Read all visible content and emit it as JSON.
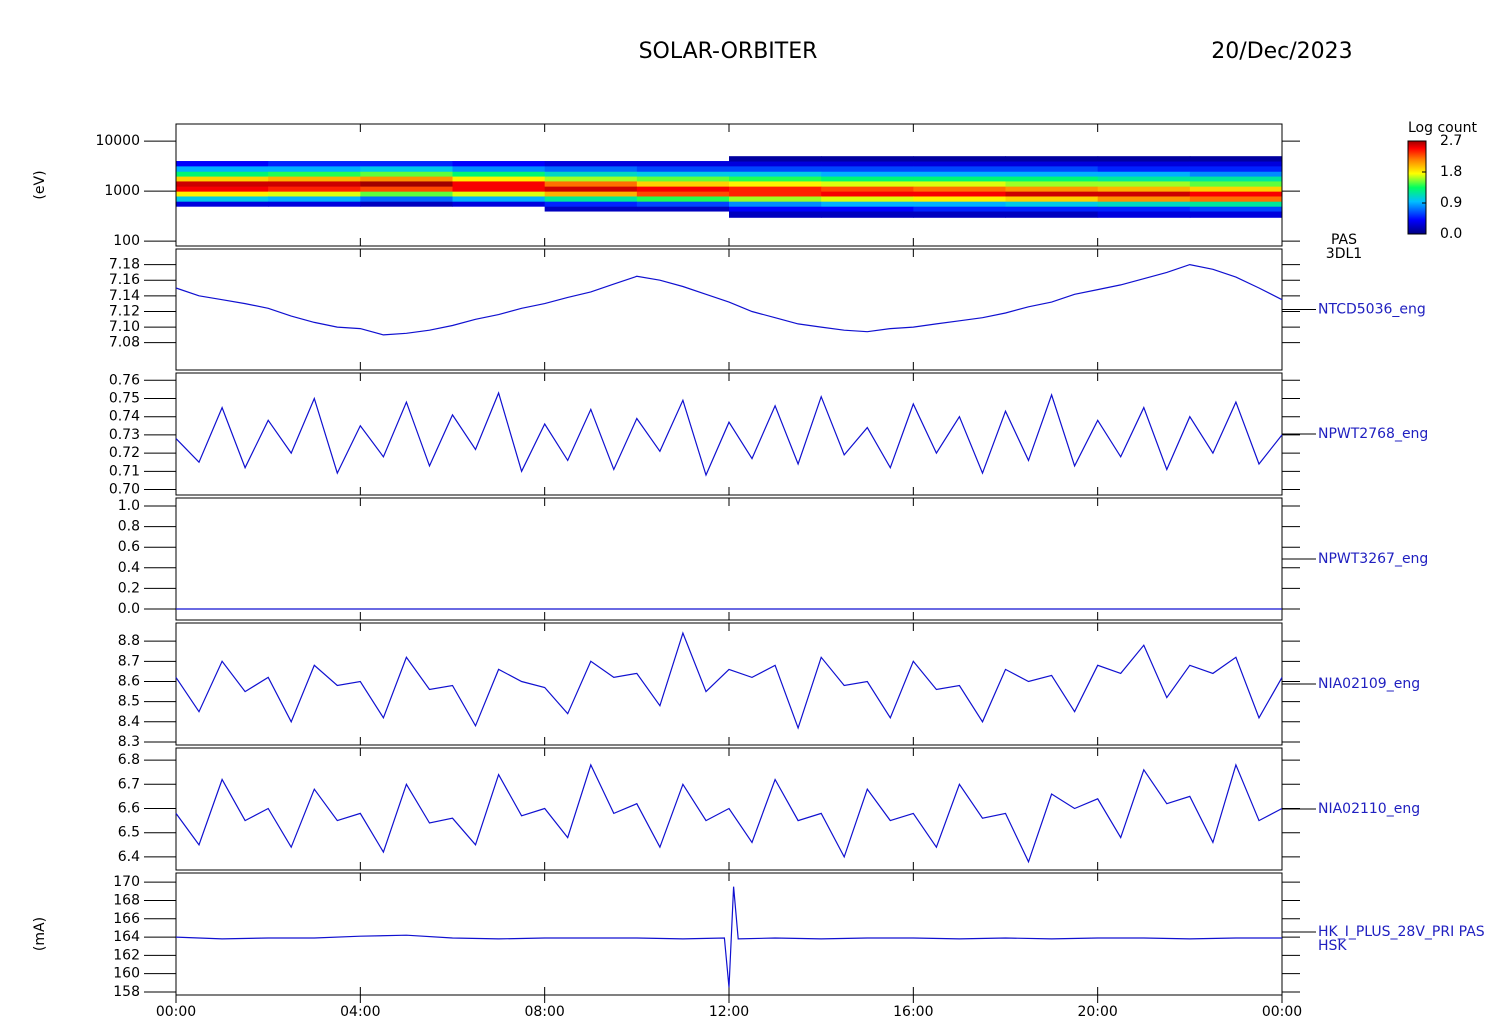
{
  "header": {
    "title": "SOLAR-ORBITER",
    "date": "20/Dec/2023"
  },
  "chart_data": [
    {
      "type": "heatmap",
      "log_y": true,
      "ylabel": "(eV)",
      "right_labels": [
        "PAS",
        "3DL1"
      ],
      "xlim": [
        0,
        24
      ],
      "ylim": [
        80,
        22000
      ],
      "yticks": [
        100,
        1000,
        10000
      ],
      "x_bins": [
        0,
        2,
        4,
        6,
        8,
        10,
        12,
        14,
        16,
        18,
        20,
        22,
        24
      ],
      "y_bins": [
        300,
        400,
        500,
        630,
        800,
        1000,
        1260,
        1600,
        2000,
        2500,
        3200,
        4000,
        5000
      ],
      "values": [
        [
          null,
          null,
          0.3,
          1.0,
          1.8,
          2.5,
          2.6,
          1.9,
          1.3,
          0.9,
          0.4,
          null
        ],
        [
          null,
          null,
          0.3,
          0.9,
          1.7,
          2.4,
          2.6,
          2.0,
          1.4,
          0.9,
          0.5,
          null
        ],
        [
          null,
          null,
          0.2,
          0.7,
          1.5,
          2.3,
          2.7,
          2.1,
          1.5,
          1.0,
          0.5,
          null
        ],
        [
          null,
          null,
          0.3,
          0.9,
          1.7,
          2.5,
          2.5,
          1.8,
          1.3,
          0.8,
          0.4,
          null
        ],
        [
          null,
          0.2,
          0.5,
          1.2,
          2.0,
          2.6,
          2.2,
          1.6,
          1.1,
          0.7,
          0.3,
          null
        ],
        [
          null,
          0.2,
          0.6,
          1.4,
          2.3,
          2.5,
          1.9,
          1.5,
          1.0,
          0.6,
          0.3,
          null
        ],
        [
          0.2,
          0.4,
          0.8,
          1.6,
          2.4,
          2.4,
          1.8,
          1.4,
          1.0,
          0.6,
          0.3,
          0.1
        ],
        [
          0.2,
          0.4,
          0.9,
          1.7,
          2.5,
          2.3,
          1.7,
          1.3,
          0.9,
          0.6,
          0.3,
          0.1
        ],
        [
          0.2,
          0.5,
          0.9,
          1.8,
          2.5,
          2.2,
          1.7,
          1.3,
          0.9,
          0.6,
          0.3,
          0.1
        ],
        [
          0.2,
          0.5,
          1.0,
          1.9,
          2.6,
          2.1,
          1.6,
          1.3,
          0.9,
          0.6,
          0.3,
          0.1
        ],
        [
          0.3,
          0.5,
          1.1,
          2.1,
          2.6,
          2.0,
          1.6,
          1.2,
          0.9,
          0.5,
          0.3,
          0.1
        ],
        [
          0.3,
          0.6,
          1.2,
          2.2,
          2.5,
          1.9,
          1.5,
          1.2,
          0.8,
          0.5,
          0.3,
          0.1
        ]
      ],
      "colorbar": {
        "label": "Log count",
        "zlim": [
          0,
          2.7
        ],
        "ticks": [
          {
            "value": 0,
            "label": "0.0"
          },
          0.9,
          1.8,
          2.7
        ]
      }
    },
    {
      "type": "line",
      "xlim": [
        0,
        24
      ],
      "ylim": [
        7.045,
        7.2
      ],
      "yticks": [
        {
          "value": 7.08,
          "label": "7.08"
        },
        {
          "value": 7.1,
          "label": "7.10"
        },
        {
          "value": 7.12,
          "label": "7.12"
        },
        {
          "value": 7.14,
          "label": "7.14"
        },
        {
          "value": 7.16,
          "label": "7.16"
        },
        {
          "value": 7.18,
          "label": "7.18"
        }
      ],
      "x": [
        0,
        0.5,
        1,
        1.5,
        2,
        2.5,
        3,
        3.5,
        4,
        4.5,
        5,
        5.5,
        6,
        6.5,
        7,
        7.5,
        8,
        8.5,
        9,
        9.5,
        10,
        10.5,
        11,
        11.5,
        12,
        12.5,
        13,
        13.5,
        14,
        14.5,
        15,
        15.5,
        16,
        16.5,
        17,
        17.5,
        18,
        18.5,
        19,
        19.5,
        20,
        20.5,
        21,
        21.5,
        22,
        22.5,
        23,
        23.5,
        24
      ],
      "series": [
        {
          "name": "NTCD5036_eng",
          "color": "#1010d0",
          "values": [
            7.15,
            7.14,
            7.135,
            7.13,
            7.124,
            7.114,
            7.106,
            7.1,
            7.098,
            7.09,
            7.092,
            7.096,
            7.102,
            7.11,
            7.116,
            7.124,
            7.13,
            7.138,
            7.145,
            7.155,
            7.165,
            7.16,
            7.152,
            7.142,
            7.132,
            7.12,
            7.112,
            7.104,
            7.1,
            7.096,
            7.094,
            7.098,
            7.1,
            7.104,
            7.108,
            7.112,
            7.118,
            7.126,
            7.132,
            7.142,
            7.148,
            7.154,
            7.162,
            7.17,
            7.18,
            7.174,
            7.164,
            7.15,
            7.135
          ]
        }
      ]
    },
    {
      "type": "line",
      "xlim": [
        0,
        24
      ],
      "ylim": [
        0.697,
        0.764
      ],
      "yticks": [
        {
          "value": 0.7,
          "label": "0.70"
        },
        0.71,
        0.72,
        0.73,
        0.74,
        0.75,
        0.76
      ],
      "x": [
        0,
        0.5,
        1,
        1.5,
        2,
        2.5,
        3,
        3.5,
        4,
        4.5,
        5,
        5.5,
        6,
        6.5,
        7,
        7.5,
        8,
        8.5,
        9,
        9.5,
        10,
        10.5,
        11,
        11.5,
        12,
        12.5,
        13,
        13.5,
        14,
        14.5,
        15,
        15.5,
        16,
        16.5,
        17,
        17.5,
        18,
        18.5,
        19,
        19.5,
        20,
        20.5,
        21,
        21.5,
        22,
        22.5,
        23,
        23.5,
        24
      ],
      "series": [
        {
          "name": "NPWT2768_eng",
          "color": "#1010d0",
          "values": [
            0.728,
            0.715,
            0.745,
            0.712,
            0.738,
            0.72,
            0.75,
            0.709,
            0.735,
            0.718,
            0.748,
            0.713,
            0.741,
            0.722,
            0.753,
            0.71,
            0.736,
            0.716,
            0.744,
            0.711,
            0.739,
            0.721,
            0.749,
            0.708,
            0.737,
            0.717,
            0.746,
            0.714,
            0.751,
            0.719,
            0.734,
            0.712,
            0.747,
            0.72,
            0.74,
            0.709,
            0.743,
            0.716,
            0.752,
            0.713,
            0.738,
            0.718,
            0.745,
            0.711,
            0.74,
            0.72,
            0.748,
            0.714,
            0.73
          ]
        }
      ]
    },
    {
      "type": "line",
      "xlim": [
        0,
        24
      ],
      "ylim": [
        -0.107,
        1.078
      ],
      "yticks": [
        {
          "value": 0,
          "label": "0.0"
        },
        0.2,
        0.4,
        0.6,
        0.8,
        {
          "value": 1,
          "label": "1.0"
        }
      ],
      "x": [
        0,
        0.5,
        1,
        1.5,
        2,
        2.5,
        3,
        3.5,
        4,
        4.5,
        5,
        5.5,
        6,
        6.5,
        7,
        7.5,
        8,
        8.5,
        9,
        9.5,
        10,
        10.5,
        11,
        11.5,
        12,
        12.5,
        13,
        13.5,
        14,
        14.5,
        15,
        15.5,
        16,
        16.5,
        17,
        17.5,
        18,
        18.5,
        19,
        19.5,
        20,
        20.5,
        21,
        21.5,
        22,
        22.5,
        23,
        23.5,
        24
      ],
      "series": [
        {
          "name": "NPWT3267_eng",
          "color": "#1010d0",
          "values": [
            0,
            0,
            0,
            0,
            0,
            0,
            0,
            0,
            0,
            0,
            0,
            0,
            0,
            0,
            0,
            0,
            0,
            0,
            0,
            0,
            0,
            0,
            0,
            0,
            0,
            0,
            0,
            0,
            0,
            0,
            0,
            0,
            0,
            0,
            0,
            0,
            0,
            0,
            0,
            0,
            0,
            0,
            0,
            0,
            0,
            0,
            0,
            0,
            0
          ]
        }
      ]
    },
    {
      "type": "line",
      "xlim": [
        0,
        24
      ],
      "ylim": [
        8.285,
        8.89
      ],
      "yticks": [
        8.3,
        8.4,
        8.5,
        8.6,
        8.7,
        8.8
      ],
      "x": [
        0,
        0.5,
        1,
        1.5,
        2,
        2.5,
        3,
        3.5,
        4,
        4.5,
        5,
        5.5,
        6,
        6.5,
        7,
        7.5,
        8,
        8.5,
        9,
        9.5,
        10,
        10.5,
        11,
        11.5,
        12,
        12.5,
        13,
        13.5,
        14,
        14.5,
        15,
        15.5,
        16,
        16.5,
        17,
        17.5,
        18,
        18.5,
        19,
        19.5,
        20,
        20.5,
        21,
        21.5,
        22,
        22.5,
        23,
        23.5,
        24
      ],
      "series": [
        {
          "name": "NIA02109_eng",
          "color": "#1010d0",
          "values": [
            8.62,
            8.45,
            8.7,
            8.55,
            8.62,
            8.4,
            8.68,
            8.58,
            8.6,
            8.42,
            8.72,
            8.56,
            8.58,
            8.38,
            8.66,
            8.6,
            8.57,
            8.44,
            8.7,
            8.62,
            8.64,
            8.48,
            8.84,
            8.55,
            8.66,
            8.62,
            8.68,
            8.37,
            8.72,
            8.58,
            8.6,
            8.42,
            8.7,
            8.56,
            8.58,
            8.4,
            8.66,
            8.6,
            8.63,
            8.45,
            8.68,
            8.64,
            8.78,
            8.52,
            8.68,
            8.64,
            8.72,
            8.42,
            8.62
          ]
        }
      ]
    },
    {
      "type": "line",
      "xlim": [
        0,
        24
      ],
      "ylim": [
        6.346,
        6.85
      ],
      "yticks": [
        6.4,
        6.5,
        6.6,
        6.7,
        6.8
      ],
      "x": [
        0,
        0.5,
        1,
        1.5,
        2,
        2.5,
        3,
        3.5,
        4,
        4.5,
        5,
        5.5,
        6,
        6.5,
        7,
        7.5,
        8,
        8.5,
        9,
        9.5,
        10,
        10.5,
        11,
        11.5,
        12,
        12.5,
        13,
        13.5,
        14,
        14.5,
        15,
        15.5,
        16,
        16.5,
        17,
        17.5,
        18,
        18.5,
        19,
        19.5,
        20,
        20.5,
        21,
        21.5,
        22,
        22.5,
        23,
        23.5,
        24
      ],
      "series": [
        {
          "name": "NIA02110_eng",
          "color": "#1010d0",
          "values": [
            6.58,
            6.45,
            6.72,
            6.55,
            6.6,
            6.44,
            6.68,
            6.55,
            6.58,
            6.42,
            6.7,
            6.54,
            6.56,
            6.45,
            6.74,
            6.57,
            6.6,
            6.48,
            6.78,
            6.58,
            6.62,
            6.44,
            6.7,
            6.55,
            6.6,
            6.46,
            6.72,
            6.55,
            6.58,
            6.4,
            6.68,
            6.55,
            6.58,
            6.44,
            6.7,
            6.56,
            6.58,
            6.38,
            6.66,
            6.6,
            6.64,
            6.48,
            6.76,
            6.62,
            6.65,
            6.46,
            6.78,
            6.55,
            6.6
          ]
        }
      ]
    },
    {
      "type": "line",
      "ylabel": "(mA)",
      "right_labels": [
        "HSK"
      ],
      "xlim": [
        0,
        24
      ],
      "ylim": [
        157.67,
        171
      ],
      "yticks": [
        158,
        160,
        162,
        164,
        166,
        168,
        170
      ],
      "xticks": [
        {
          "value": 0,
          "label": "00:00"
        },
        {
          "value": 4,
          "label": "04:00"
        },
        {
          "value": 8,
          "label": "08:00"
        },
        {
          "value": 12,
          "label": "12:00"
        },
        {
          "value": 16,
          "label": "16:00"
        },
        {
          "value": 20,
          "label": "20:00"
        },
        {
          "value": 24,
          "label": "00:00"
        }
      ],
      "x": [
        0,
        1,
        2,
        3,
        4,
        5,
        6,
        7,
        8,
        9,
        10,
        11,
        11.9,
        12,
        12.1,
        12.2,
        13,
        14,
        15,
        16,
        17,
        18,
        19,
        20,
        21,
        22,
        23,
        24
      ],
      "series": [
        {
          "name": "HK_I_PLUS_28V_PRI PAS",
          "color": "#1010d0",
          "values": [
            164.0,
            163.8,
            163.9,
            163.9,
            164.1,
            164.2,
            163.9,
            163.8,
            163.9,
            163.9,
            163.9,
            163.8,
            163.9,
            158.5,
            169.5,
            163.8,
            163.9,
            163.8,
            163.9,
            163.9,
            163.8,
            163.9,
            163.8,
            163.9,
            163.9,
            163.8,
            163.9,
            163.9
          ]
        }
      ]
    }
  ]
}
